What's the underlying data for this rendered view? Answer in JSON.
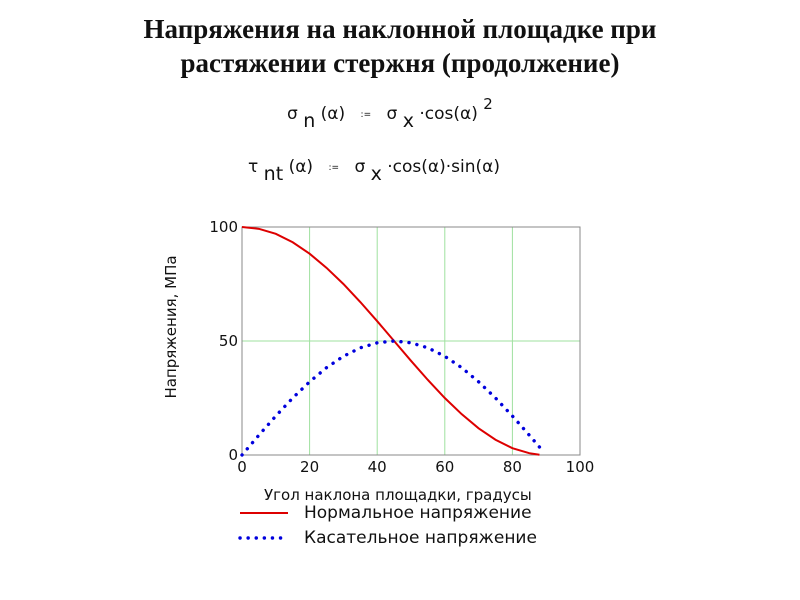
{
  "title": {
    "line1": "Напряжения на наклонной площадке при",
    "line2": "растяжении стержня (продолжение)"
  },
  "formulas": {
    "f1": {
      "lhs_symbol": "σ",
      "lhs_sub": "n",
      "arg": "(α)",
      "assign": ":=",
      "rhs_symbol": "σ",
      "rhs_sub": "x",
      "rhs": "·cos(α)",
      "power": "2"
    },
    "f2": {
      "lhs_symbol": "τ",
      "lhs_sub": "nt",
      "arg": "(α)",
      "assign": ":=",
      "rhs_symbol": "σ",
      "rhs_sub": "x",
      "rhs": "·cos(α)·sin(α)"
    }
  },
  "chart_data": {
    "type": "line",
    "xlabel": "Угол наклона площадки, градусы",
    "ylabel": "Напряжения, МПа",
    "xlim": [
      0,
      100
    ],
    "ylim": [
      0,
      100
    ],
    "xticks": [
      0,
      20,
      40,
      60,
      80,
      100
    ],
    "yticks": [
      0,
      50,
      100
    ],
    "grid": true,
    "legend_position": "bottom",
    "series": [
      {
        "name": "Нормальное напряжение",
        "style": "solid",
        "color": "#dd0000",
        "x": [
          0,
          5,
          10,
          15,
          20,
          25,
          30,
          35,
          40,
          45,
          50,
          55,
          60,
          65,
          70,
          75,
          80,
          85,
          88
        ],
        "values": [
          100,
          99.2,
          97,
          93.3,
          88.3,
          82.1,
          75,
          67.1,
          58.7,
          50,
          41.3,
          32.9,
          25,
          17.9,
          11.7,
          6.7,
          3,
          0.8,
          0.1
        ]
      },
      {
        "name": "Касательное напряжение",
        "style": "dotted",
        "color": "#0000dd",
        "x": [
          0,
          5,
          10,
          15,
          20,
          25,
          30,
          35,
          40,
          45,
          50,
          55,
          60,
          65,
          70,
          75,
          80,
          85,
          88
        ],
        "values": [
          0,
          8.7,
          17.1,
          25,
          32.1,
          38.3,
          43.3,
          47,
          49.2,
          50,
          49.2,
          47,
          43.3,
          38.3,
          32.1,
          25,
          17.1,
          8.7,
          3.5
        ]
      }
    ]
  }
}
